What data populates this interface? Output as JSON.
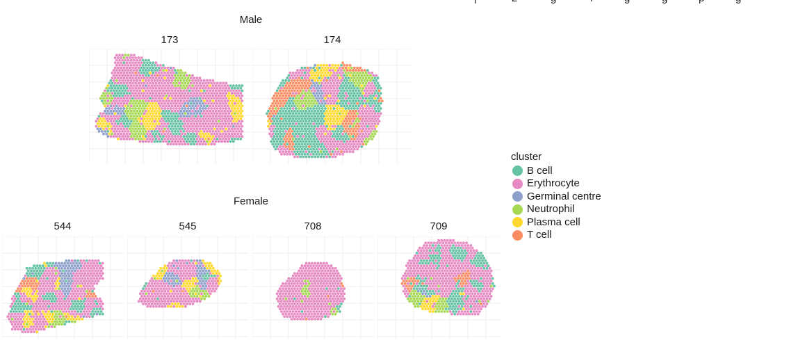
{
  "chart_data": {
    "type": "scatter",
    "groups": [
      {
        "title": "Male",
        "samples": [
          "173",
          "174"
        ]
      },
      {
        "title": "Female",
        "samples": [
          "544",
          "545",
          "708",
          "709"
        ]
      }
    ],
    "legend": {
      "title": "cluster",
      "items": [
        {
          "label": "B cell",
          "color": "#66c2a5"
        },
        {
          "label": "Erythrocyte",
          "color": "#e78ac3"
        },
        {
          "label": "Germinal centre",
          "color": "#8da0cb"
        },
        {
          "label": "Neutrophil",
          "color": "#a6d854"
        },
        {
          "label": "Plasma cell",
          "color": "#ffd92f"
        },
        {
          "label": "T cell",
          "color": "#fc8d62"
        }
      ]
    },
    "approx_cluster_share": {
      "173": {
        "B cell": 0.14,
        "Erythrocyte": 0.55,
        "Germinal centre": 0.05,
        "Neutrophil": 0.1,
        "Plasma cell": 0.12,
        "T cell": 0.04
      },
      "174": {
        "B cell": 0.25,
        "Erythrocyte": 0.4,
        "Germinal centre": 0.03,
        "Neutrophil": 0.1,
        "Plasma cell": 0.07,
        "T cell": 0.15
      },
      "544": {
        "B cell": 0.25,
        "Erythrocyte": 0.4,
        "Germinal centre": 0.04,
        "Neutrophil": 0.08,
        "Plasma cell": 0.15,
        "T cell": 0.08
      },
      "545": {
        "B cell": 0.22,
        "Erythrocyte": 0.4,
        "Germinal centre": 0.05,
        "Neutrophil": 0.08,
        "Plasma cell": 0.15,
        "T cell": 0.1
      },
      "708": {
        "B cell": 0.15,
        "Erythrocyte": 0.7,
        "Germinal centre": 0.02,
        "Neutrophil": 0.05,
        "Plasma cell": 0.03,
        "T cell": 0.05
      },
      "709": {
        "B cell": 0.22,
        "Erythrocyte": 0.6,
        "Germinal centre": 0.03,
        "Neutrophil": 0.1,
        "Plasma cell": 0.02,
        "T cell": 0.03
      }
    }
  }
}
